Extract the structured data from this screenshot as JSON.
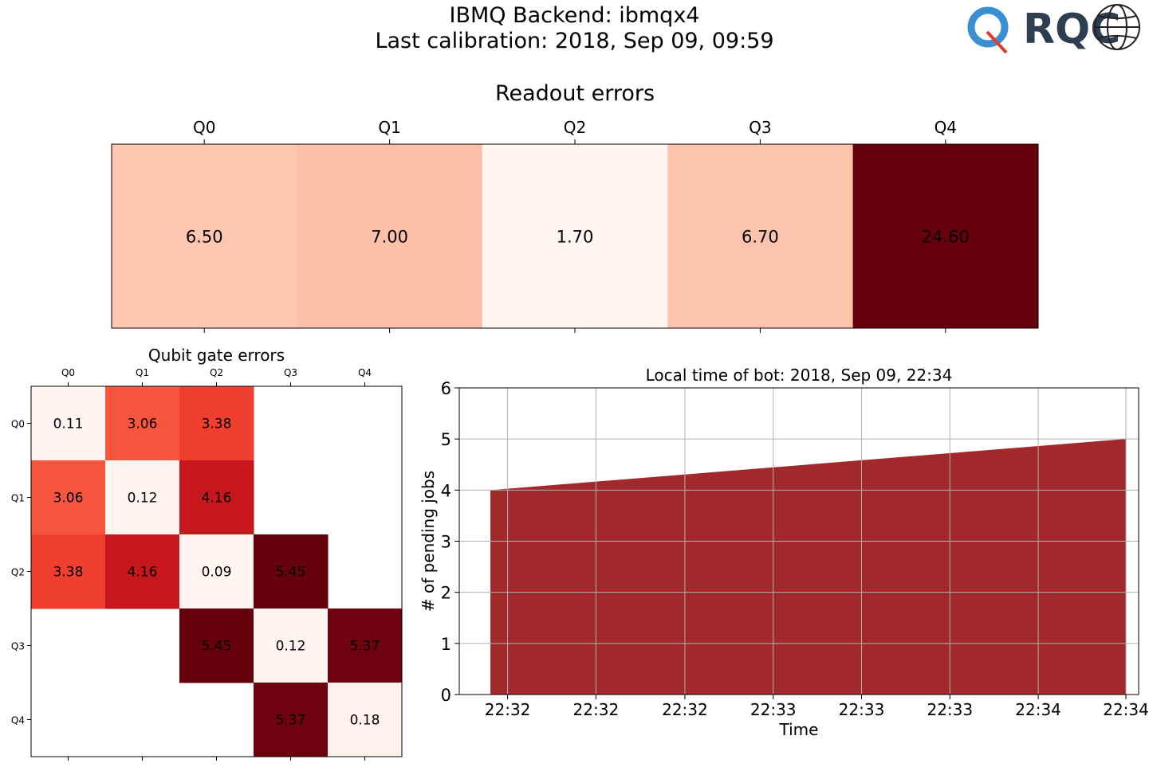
{
  "header": {
    "title_line1": "IBMQ Backend: ibmqx4",
    "title_line2": "Last calibration: 2018, Sep 09, 09:59",
    "logo_text": "RQC"
  },
  "chart_data": [
    {
      "type": "heatmap",
      "title": "Readout errors",
      "colormap": "Reds",
      "x": [
        "Q0",
        "Q1",
        "Q2",
        "Q3",
        "Q4"
      ],
      "values": [
        [
          6.5,
          7.0,
          1.7,
          6.7,
          24.6
        ]
      ],
      "value_labels": [
        "6.50",
        "7.00",
        "1.70",
        "6.70",
        "24.60"
      ]
    },
    {
      "type": "heatmap",
      "title": "Qubit gate errors",
      "colormap": "Reds",
      "x": [
        "Q0",
        "Q1",
        "Q2",
        "Q3",
        "Q4"
      ],
      "y": [
        "Q0",
        "Q1",
        "Q2",
        "Q3",
        "Q4"
      ],
      "values": [
        [
          0.11,
          3.06,
          3.38,
          null,
          null
        ],
        [
          3.06,
          0.12,
          4.16,
          null,
          null
        ],
        [
          3.38,
          4.16,
          0.09,
          5.45,
          null
        ],
        [
          null,
          null,
          5.45,
          0.12,
          5.37
        ],
        [
          null,
          null,
          null,
          5.37,
          0.18
        ]
      ],
      "value_labels": [
        [
          "0.11",
          "3.06",
          "3.38",
          "",
          ""
        ],
        [
          "3.06",
          "0.12",
          "4.16",
          "",
          ""
        ],
        [
          "3.38",
          "4.16",
          "0.09",
          "5.45",
          ""
        ],
        [
          "",
          "",
          "5.45",
          "0.12",
          "5.37"
        ],
        [
          "",
          "",
          "",
          "5.37",
          "0.18"
        ]
      ]
    },
    {
      "type": "area",
      "title": "Local time of bot: 2018, Sep 09, 22:34",
      "xlabel": "Time",
      "ylabel": "# of pending jobs",
      "ylim": [
        0,
        6
      ],
      "yticks": [
        0,
        1,
        2,
        3,
        4,
        5,
        6
      ],
      "xtick_labels": [
        "22:32",
        "22:32",
        "22:32",
        "22:33",
        "22:33",
        "22:33",
        "22:34",
        "22:34"
      ],
      "points": [
        {
          "x": 0.0,
          "y": 4
        },
        {
          "x": 1.0,
          "y": 5
        }
      ],
      "x_domain": [
        -0.049,
        1.02
      ],
      "xtick_positions": [
        0.027,
        0.166,
        0.306,
        0.445,
        0.584,
        0.723,
        0.862,
        1.0
      ],
      "fill_color": "#a2292b",
      "grid": true
    }
  ]
}
